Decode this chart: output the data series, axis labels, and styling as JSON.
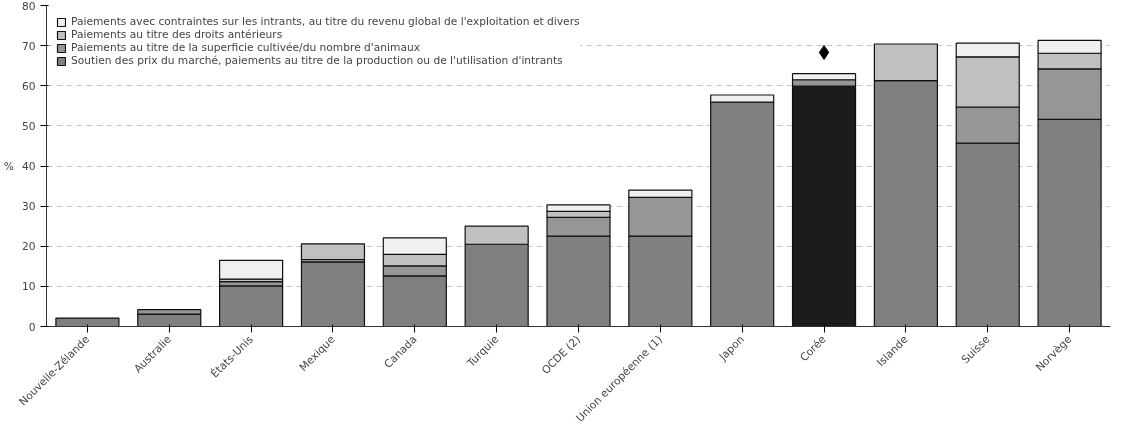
{
  "chart_data": {
    "type": "bar",
    "stacked": true,
    "ylabel": "%",
    "categories": [
      "Nouvelle-Zélande",
      "Australie",
      "États-Unis",
      "Mexique",
      "Canada",
      "Turquie",
      "OCDE (2)",
      "Union européenne (1)",
      "Japon",
      "Corée",
      "Islande",
      "Suisse",
      "Norvège"
    ],
    "series": [
      {
        "name": "Soutien des prix du marché, paiements au titre de la production ou de l'utilisation d'intrants",
        "color": "#808080",
        "colors": [
          null,
          null,
          null,
          null,
          null,
          null,
          null,
          null,
          null,
          "#1c1c1c",
          null,
          null,
          null
        ],
        "values": [
          2.1,
          3.1,
          10.1,
          16.1,
          12.6,
          20.5,
          22.5,
          22.5,
          55.9,
          59.9,
          61.3,
          45.7,
          51.6
        ]
      },
      {
        "name": "Paiements au titre de la superficie cultivée/du nombre d'animaux",
        "color": "#969696",
        "values": [
          null,
          1.1,
          1.1,
          0.6,
          2.5,
          null,
          4.7,
          9.7,
          null,
          1.6,
          null,
          9.0,
          12.6
        ]
      },
      {
        "name": "Paiements au titre des droits antérieurs",
        "color": "#c0c0c0",
        "values": [
          null,
          null,
          0.6,
          3.9,
          2.9,
          4.5,
          1.5,
          null,
          null,
          null,
          9.1,
          12.5,
          3.9
        ]
      },
      {
        "name": "Paiements avec contraintes sur les intrants, au titre du revenu global de l'exploitation et divers",
        "color": "#f0f0f0",
        "values": [
          null,
          null,
          4.7,
          null,
          4.1,
          null,
          1.6,
          1.8,
          1.8,
          1.5,
          null,
          3.4,
          3.2
        ]
      },
      {
        "type": "scatter",
        "marker": "diamond",
        "color": "#000000",
        "x": [
          "Corée"
        ],
        "values": [
          68.3
        ]
      }
    ],
    "ylim": [
      0,
      80
    ],
    "yticks": [
      0,
      10,
      20,
      30,
      40,
      50,
      60,
      70,
      80
    ],
    "grid": "y",
    "legend": "top left"
  }
}
